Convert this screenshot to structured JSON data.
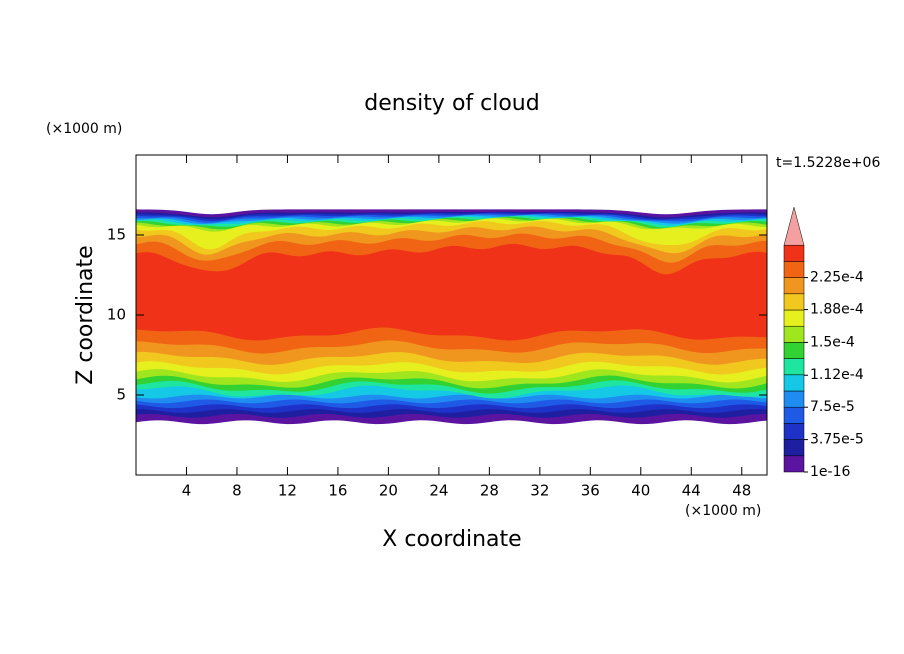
{
  "chart_data": {
    "type": "contour",
    "title": "density of cloud",
    "x_label": "X coordinate",
    "y_label": "Z coordinate",
    "x_unit": "(×1000 m)",
    "y_unit": "(×1000 m)",
    "time_label": "t=1.5228e+06",
    "xlim": [
      0,
      50
    ],
    "ylim": [
      0,
      20
    ],
    "xticks": [
      4,
      8,
      12,
      16,
      20,
      24,
      28,
      32,
      36,
      40,
      44,
      48
    ],
    "yticks": [
      5,
      10,
      15
    ],
    "levels": [
      1e-16,
      1.875e-05,
      3.75e-05,
      5.625e-05,
      7.5e-05,
      9.375e-05,
      0.0001125,
      0.00013125,
      0.00015,
      0.00016875,
      0.0001875,
      0.00020625,
      0.000225,
      0.00024375
    ],
    "colors": [
      "#5a14a0",
      "#1e1ea0",
      "#1e32c8",
      "#1e5ae6",
      "#1e8cf0",
      "#14c8e6",
      "#1ee6a0",
      "#32d232",
      "#a0e61e",
      "#e6f01e",
      "#f0c81e",
      "#f0961e",
      "#f06414",
      "#f03218"
    ],
    "extend_color": "#f4a0a0",
    "colorbar_ticks": [
      {
        "value": 1e-16,
        "label": "1e-16"
      },
      {
        "value": 3.75e-05,
        "label": "3.75e-5"
      },
      {
        "value": 7.5e-05,
        "label": "7.5e-5"
      },
      {
        "value": 0.000112,
        "label": "1.12e-4"
      },
      {
        "value": 0.00015,
        "label": "1.5e-4"
      },
      {
        "value": 0.000188,
        "label": "1.88e-4"
      },
      {
        "value": 0.000225,
        "label": "2.25e-4"
      }
    ]
  }
}
